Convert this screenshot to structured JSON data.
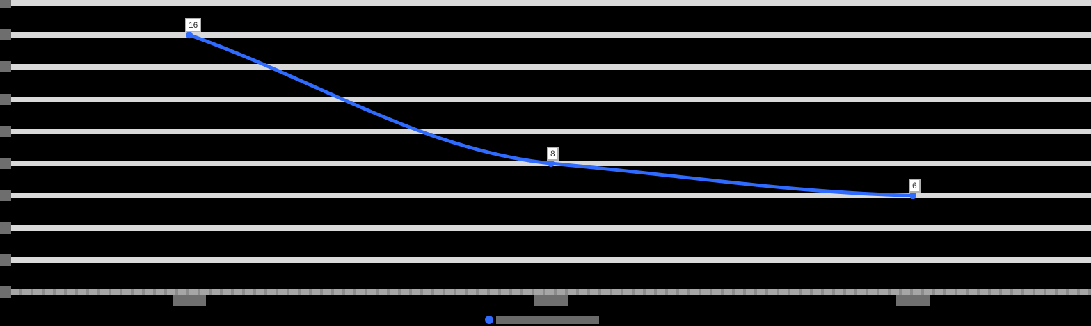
{
  "chart_data": {
    "type": "line",
    "title": "",
    "xlabel": "",
    "ylabel": "",
    "categories": [
      "",
      "",
      ""
    ],
    "series": [
      {
        "name": "",
        "color": "#2f6bff",
        "values": [
          16,
          8,
          6
        ]
      }
    ],
    "data_labels": [
      "16",
      "8",
      "6"
    ],
    "ylim": [
      0,
      18
    ],
    "yticks": [
      0,
      2,
      4,
      6,
      8,
      10,
      12,
      14,
      16,
      18
    ],
    "grid": true,
    "legend_position": "bottom",
    "smoothed": true
  },
  "colors": {
    "background": "#000000",
    "gridline": "#d9d9d9",
    "series": "#2f6bff"
  }
}
